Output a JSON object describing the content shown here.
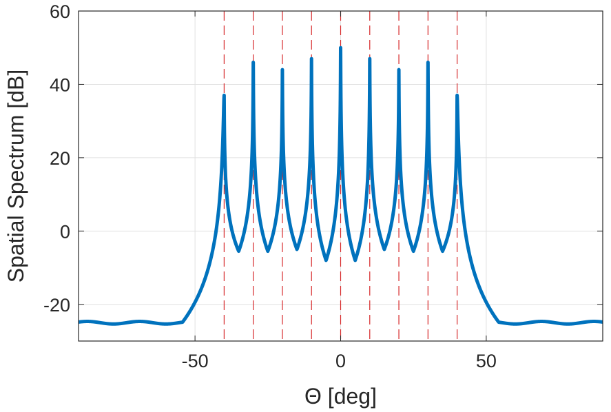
{
  "chart_data": {
    "type": "line",
    "xlabel": "Θ [deg]",
    "ylabel": "Spatial Spectrum [dB]",
    "xlim": [
      -90,
      90
    ],
    "ylim": [
      -30,
      60
    ],
    "xticks": [
      -50,
      0,
      50
    ],
    "yticks": [
      -20,
      0,
      20,
      40,
      60
    ],
    "xtick_labels": [
      "-50",
      "0",
      "50"
    ],
    "ytick_labels": [
      "-20",
      "0",
      "20",
      "40",
      "60"
    ],
    "grid": true,
    "legend": "none",
    "floor_level": -25,
    "source_angles": [
      -40,
      -30,
      -20,
      -10,
      0,
      10,
      20,
      30,
      40
    ],
    "peak_values": [
      37,
      46,
      44,
      47,
      50,
      47,
      44,
      46,
      37
    ],
    "trough_values": [
      -5.5,
      -5.5,
      -5,
      -8,
      -8,
      -5,
      -5.5,
      -5.5
    ],
    "series": [
      {
        "values_x": [
          -90,
          -80,
          -70,
          -60,
          -55,
          -52,
          -50,
          -48,
          -46,
          -44,
          -42,
          -41,
          -40,
          -39,
          -35,
          -31,
          -30,
          -29,
          -25,
          -21,
          -20,
          -19,
          -15,
          -11,
          -10,
          -9,
          -5,
          -1,
          0,
          1,
          5,
          9,
          10,
          11,
          15,
          19,
          20,
          21,
          25,
          29,
          30,
          31,
          35,
          39,
          40,
          41,
          42,
          44,
          46,
          48,
          50,
          52,
          55,
          60,
          70,
          80,
          90
        ],
        "values_y": [
          -25,
          -25,
          -25.2,
          -24.5,
          -25,
          -25.3,
          -23,
          -18,
          -12,
          -5,
          5,
          15,
          37,
          15,
          -5.5,
          15,
          46,
          15,
          -5.5,
          15,
          44,
          15,
          -5,
          15,
          47,
          15,
          -8,
          15,
          50,
          15,
          -8,
          15,
          47,
          15,
          -5,
          15,
          44,
          15,
          -5.5,
          15,
          46,
          15,
          -5.5,
          15,
          37,
          15,
          5,
          -5,
          -12,
          -18,
          -23,
          -25.3,
          -25,
          -24.5,
          -25.2,
          -25,
          -25
        ],
        "color": "#0072bd"
      }
    ],
    "reference_lines_color": "#d62728"
  }
}
